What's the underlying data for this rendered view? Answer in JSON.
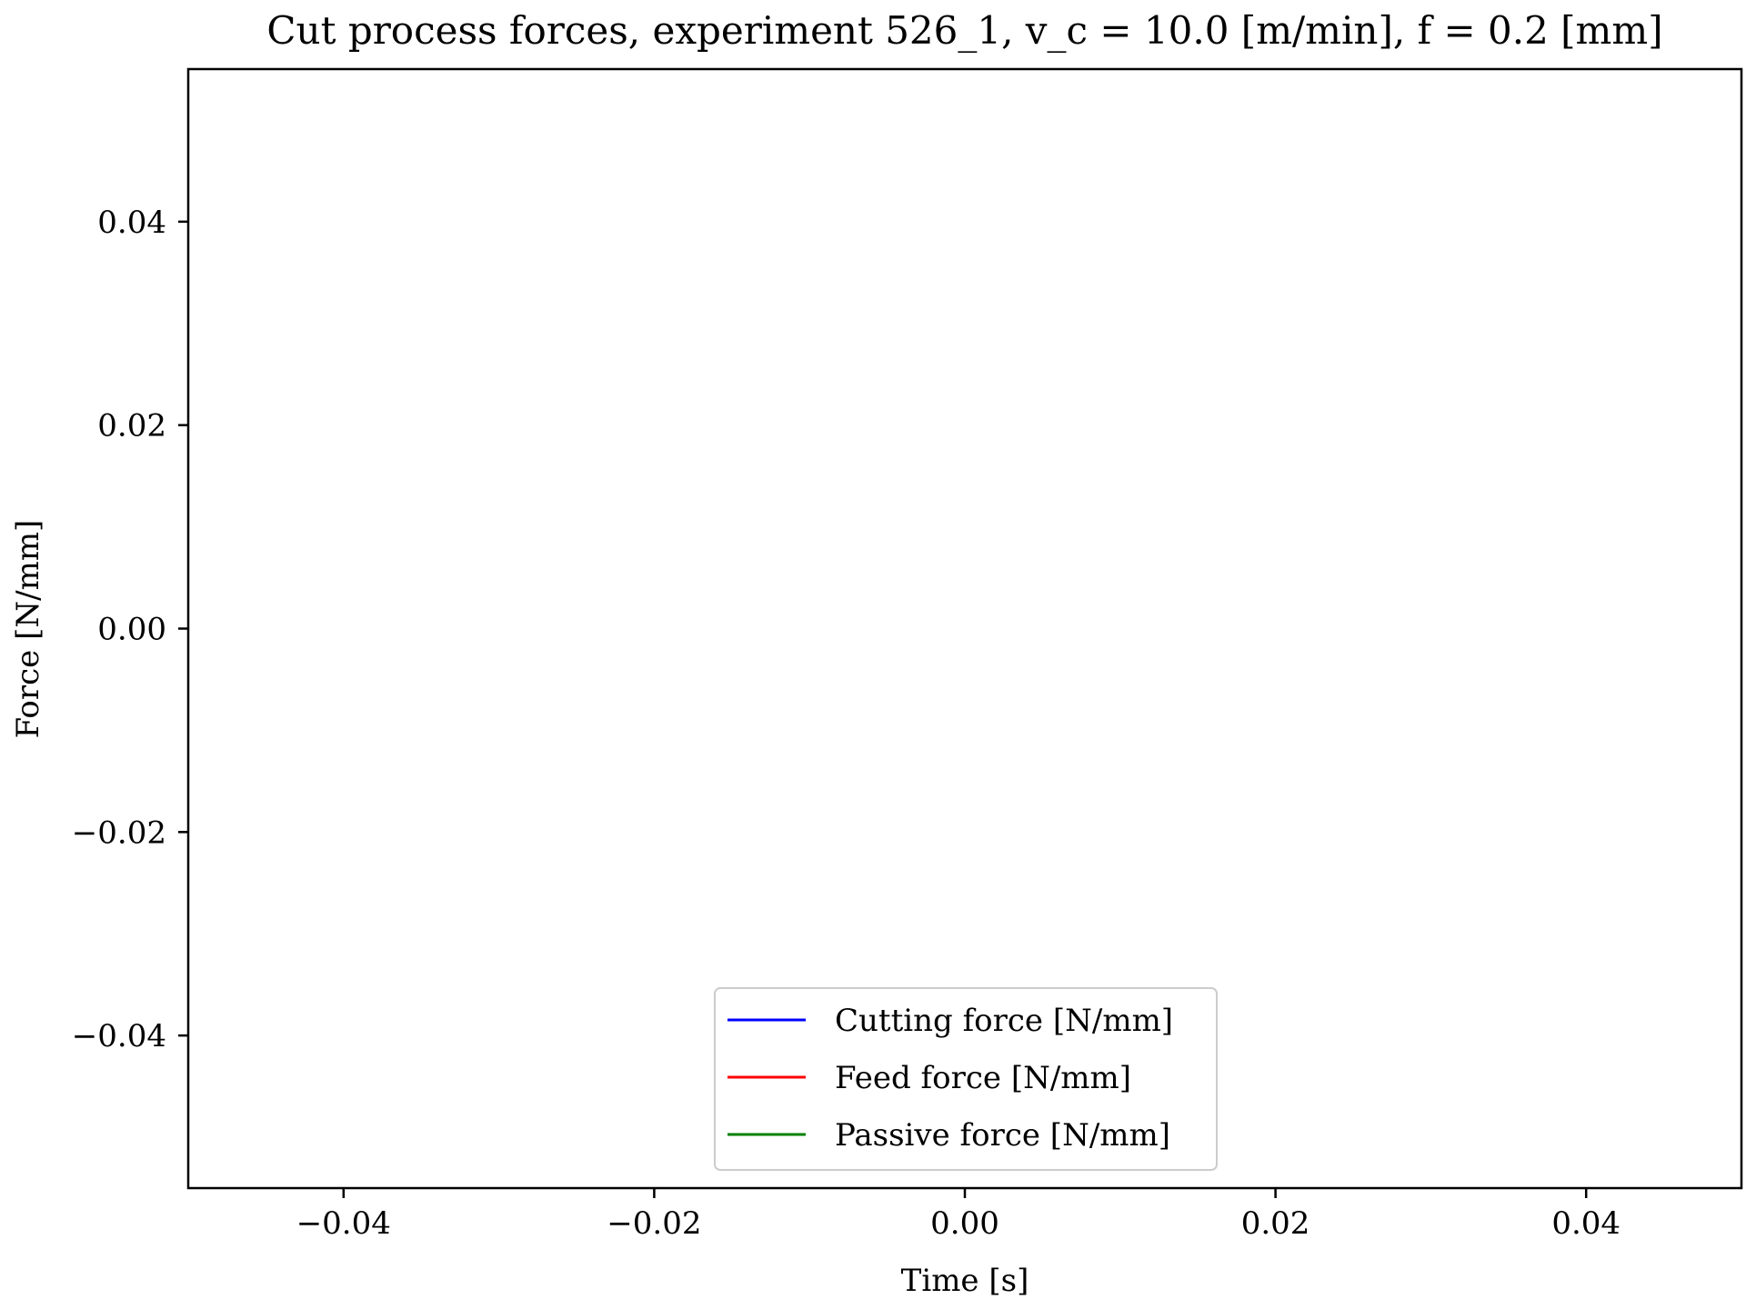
{
  "chart_data": {
    "type": "line",
    "title": "Cut process forces, experiment 526_1, v_c = 10.0 [m/min], f = 0.2 [mm]",
    "xlabel": "Time [s]",
    "ylabel": "Force [N/mm]",
    "xlim": [
      -0.05,
      0.05
    ],
    "ylim": [
      -0.055,
      0.055
    ],
    "x_ticks": [
      {
        "value": -0.04,
        "label": "−0.04"
      },
      {
        "value": -0.02,
        "label": "−0.02"
      },
      {
        "value": 0.0,
        "label": "0.00"
      },
      {
        "value": 0.02,
        "label": "0.02"
      },
      {
        "value": 0.04,
        "label": "0.04"
      }
    ],
    "y_ticks": [
      {
        "value": 0.04,
        "label": "0.04"
      },
      {
        "value": 0.02,
        "label": "0.02"
      },
      {
        "value": 0.0,
        "label": "0.00"
      },
      {
        "value": -0.02,
        "label": "−0.02"
      },
      {
        "value": -0.04,
        "label": "−0.04"
      }
    ],
    "grid": false,
    "legend_position": "bottom-center",
    "series": [
      {
        "name": "Cutting force [N/mm]",
        "color": "#0000ff",
        "x": [],
        "y": []
      },
      {
        "name": "Feed force [N/mm]",
        "color": "#ff0000",
        "x": [],
        "y": []
      },
      {
        "name": "Passive force [N/mm]",
        "color": "#008000",
        "x": [],
        "y": []
      }
    ]
  }
}
